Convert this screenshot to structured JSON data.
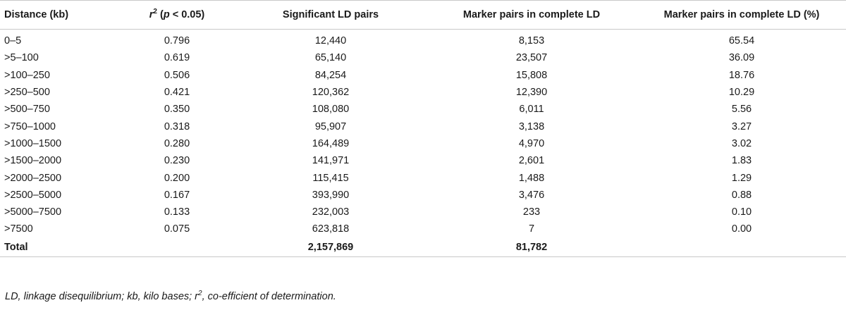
{
  "table": {
    "headers": {
      "distance": "Distance (kb)",
      "r2_var": "r",
      "r2_sup": "2",
      "r2_paren_open": " (",
      "r2_p": "p",
      "r2_cond": " < 0.05)",
      "significant": "Significant LD pairs",
      "complete": "Marker pairs in complete LD",
      "complete_pct": "Marker pairs in complete LD (%)"
    },
    "rows": [
      {
        "distance": "0–5",
        "r2": "0.796",
        "significant": "12,440",
        "complete": "8,153",
        "pct": "65.54"
      },
      {
        "distance": ">5–100",
        "r2": "0.619",
        "significant": "65,140",
        "complete": "23,507",
        "pct": "36.09"
      },
      {
        "distance": ">100–250",
        "r2": "0.506",
        "significant": "84,254",
        "complete": "15,808",
        "pct": "18.76"
      },
      {
        "distance": ">250–500",
        "r2": "0.421",
        "significant": "120,362",
        "complete": "12,390",
        "pct": "10.29"
      },
      {
        "distance": ">500–750",
        "r2": "0.350",
        "significant": "108,080",
        "complete": "6,011",
        "pct": "5.56"
      },
      {
        "distance": ">750–1000",
        "r2": "0.318",
        "significant": "95,907",
        "complete": "3,138",
        "pct": "3.27"
      },
      {
        "distance": ">1000–1500",
        "r2": "0.280",
        "significant": "164,489",
        "complete": "4,970",
        "pct": "3.02"
      },
      {
        "distance": ">1500–2000",
        "r2": "0.230",
        "significant": "141,971",
        "complete": "2,601",
        "pct": "1.83"
      },
      {
        "distance": ">2000–2500",
        "r2": "0.200",
        "significant": "115,415",
        "complete": "1,488",
        "pct": "1.29"
      },
      {
        "distance": ">2500–5000",
        "r2": "0.167",
        "significant": "393,990",
        "complete": "3,476",
        "pct": "0.88"
      },
      {
        "distance": ">5000–7500",
        "r2": "0.133",
        "significant": "232,003",
        "complete": "233",
        "pct": "0.10"
      },
      {
        "distance": ">7500",
        "r2": "0.075",
        "significant": "623,818",
        "complete": "7",
        "pct": "0.00"
      }
    ],
    "total": {
      "label": "Total",
      "significant": "2,157,869",
      "complete": "81,782"
    }
  },
  "footnote": {
    "part1": "LD, linkage disequilibrium; kb, kilo bases; r",
    "sup": "2",
    "part2": ", co-efficient of determination."
  }
}
